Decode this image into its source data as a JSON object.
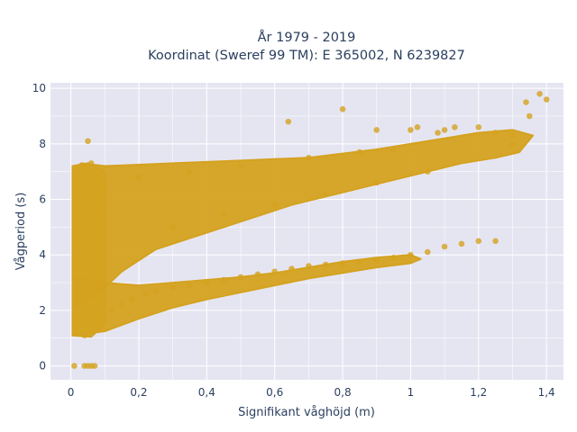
{
  "chart_data": {
    "type": "scatter",
    "title": "År 1979 - 2019",
    "subtitle": "Koordinat (Sweref 99 TM): E 365002, N 6239827",
    "xlabel": "Signifikant våghöjd (m)",
    "ylabel": "Vågperiod (s)",
    "xlim": [
      -0.06,
      1.45
    ],
    "ylim": [
      -0.5,
      10.2
    ],
    "x_ticks": [
      "0",
      "0,2",
      "0,4",
      "0,6",
      "0,8",
      "1",
      "1,2",
      "1,4"
    ],
    "x_tick_values": [
      0,
      0.2,
      0.4,
      0.6,
      0.8,
      1.0,
      1.2,
      1.4
    ],
    "y_ticks": [
      "0",
      "2",
      "4",
      "6",
      "8",
      "10"
    ],
    "y_tick_values": [
      0,
      2,
      4,
      6,
      8,
      10
    ],
    "grid": true,
    "marker_color": "#d4a21f",
    "plot_bg": "#e5e5f2",
    "series": [
      {
        "x": [
          0.01,
          0.04,
          0.05,
          0.06,
          0.07,
          0.04,
          0.05,
          0.06,
          0.05,
          0.05,
          0.04,
          0.06,
          0.08,
          0.07,
          0.12,
          0.15,
          0.18,
          0.22,
          0.25,
          0.3,
          0.35,
          0.4,
          0.45,
          0.5,
          0.55,
          0.6,
          0.65,
          0.7,
          0.75,
          0.8,
          0.85,
          0.9,
          0.95,
          1.0,
          1.05,
          1.1,
          1.15,
          1.2,
          1.25,
          1.3,
          1.35,
          1.38,
          1.34,
          1.4,
          1.3,
          0.8,
          0.64,
          0.9,
          1.0,
          1.02,
          1.08,
          1.1,
          1.13,
          1.2,
          1.25,
          0.95,
          0.85,
          0.7,
          0.5,
          0.35,
          0.2,
          0.1,
          0.05,
          0.3,
          0.45,
          0.6,
          0.75,
          0.9,
          1.05,
          0.09,
          0.05,
          0.06,
          0.04
        ],
        "y": [
          0.0,
          0.0,
          0.0,
          0.0,
          0.0,
          1.1,
          2.0,
          3.0,
          4.5,
          6.0,
          7.0,
          7.3,
          5.5,
          6.8,
          2.0,
          2.2,
          2.4,
          2.6,
          2.7,
          2.8,
          2.9,
          3.0,
          3.1,
          3.2,
          3.3,
          3.4,
          3.5,
          3.6,
          3.65,
          3.7,
          3.75,
          3.8,
          3.9,
          4.0,
          4.1,
          4.3,
          4.4,
          4.5,
          4.5,
          8.3,
          9.0,
          9.8,
          9.5,
          9.6,
          8.0,
          9.25,
          8.8,
          8.5,
          8.5,
          8.6,
          8.4,
          8.5,
          8.6,
          8.6,
          8.4,
          7.8,
          7.7,
          7.5,
          7.2,
          7.0,
          6.8,
          6.5,
          8.1,
          5.0,
          5.5,
          5.8,
          6.2,
          6.6,
          7.0,
          1.6,
          3.5,
          5.0,
          6.3
        ]
      }
    ]
  }
}
